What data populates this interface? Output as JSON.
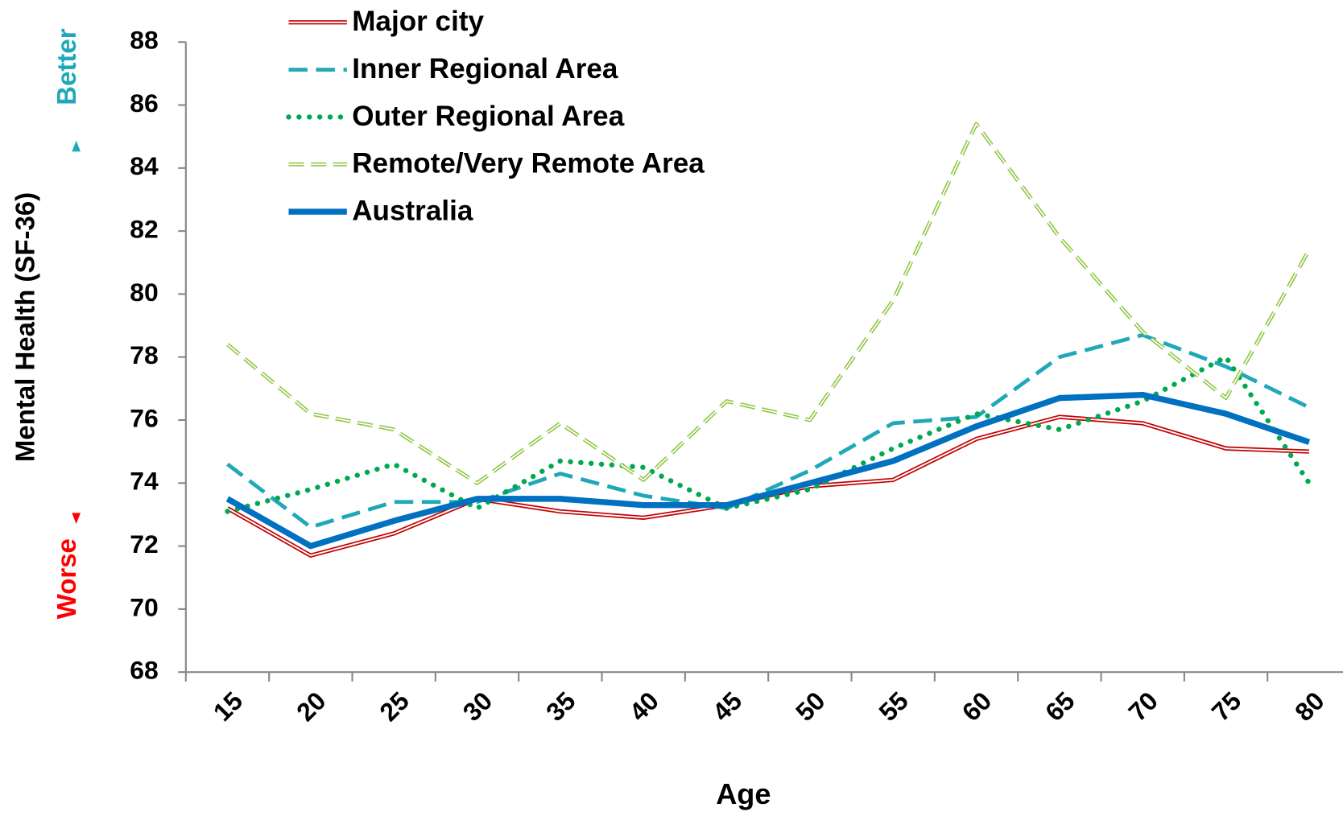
{
  "chart_data": {
    "type": "line",
    "y_label": "Mental Health (SF-36)",
    "x_label": "Age",
    "annotations": {
      "better": "Better",
      "worse": "Worse"
    },
    "categories": [
      "15",
      "20",
      "25",
      "30",
      "35",
      "40",
      "45",
      "50",
      "55",
      "60",
      "65",
      "70",
      "75",
      "80"
    ],
    "ylim": [
      68,
      88
    ],
    "yticks": [
      68,
      70,
      72,
      74,
      76,
      78,
      80,
      82,
      84,
      86,
      88
    ],
    "legend": "top-left",
    "series": [
      {
        "name": "Major city",
        "color": "#c00000",
        "style": "double",
        "values": [
          73.2,
          71.7,
          72.4,
          73.5,
          73.1,
          72.9,
          73.3,
          73.9,
          74.1,
          75.4,
          76.1,
          75.9,
          75.1,
          75.0
        ]
      },
      {
        "name": "Inner Regional Area",
        "color": "#1fa8b8",
        "style": "dashed",
        "values": [
          74.6,
          72.6,
          73.4,
          73.4,
          74.3,
          73.6,
          73.2,
          74.4,
          75.9,
          76.1,
          78.0,
          78.7,
          77.7,
          76.4
        ]
      },
      {
        "name": "Outer Regional Area",
        "color": "#00a850",
        "style": "dotted",
        "values": [
          73.1,
          73.8,
          74.6,
          73.2,
          74.7,
          74.5,
          73.2,
          73.8,
          75.1,
          76.2,
          75.7,
          76.6,
          78.0,
          74.0
        ]
      },
      {
        "name": "Remote/Very Remote Area",
        "color": "#8cc63f",
        "style": "double-dashed",
        "values": [
          78.4,
          76.2,
          75.7,
          74.0,
          75.9,
          74.1,
          76.6,
          76.0,
          79.8,
          85.4,
          81.8,
          78.8,
          76.7,
          81.4
        ]
      },
      {
        "name": "Australia",
        "color": "#0070c0",
        "style": "solid",
        "values": [
          73.5,
          72.0,
          72.8,
          73.5,
          73.5,
          73.3,
          73.3,
          74.0,
          74.7,
          75.8,
          76.7,
          76.8,
          76.2,
          75.3
        ]
      }
    ]
  }
}
